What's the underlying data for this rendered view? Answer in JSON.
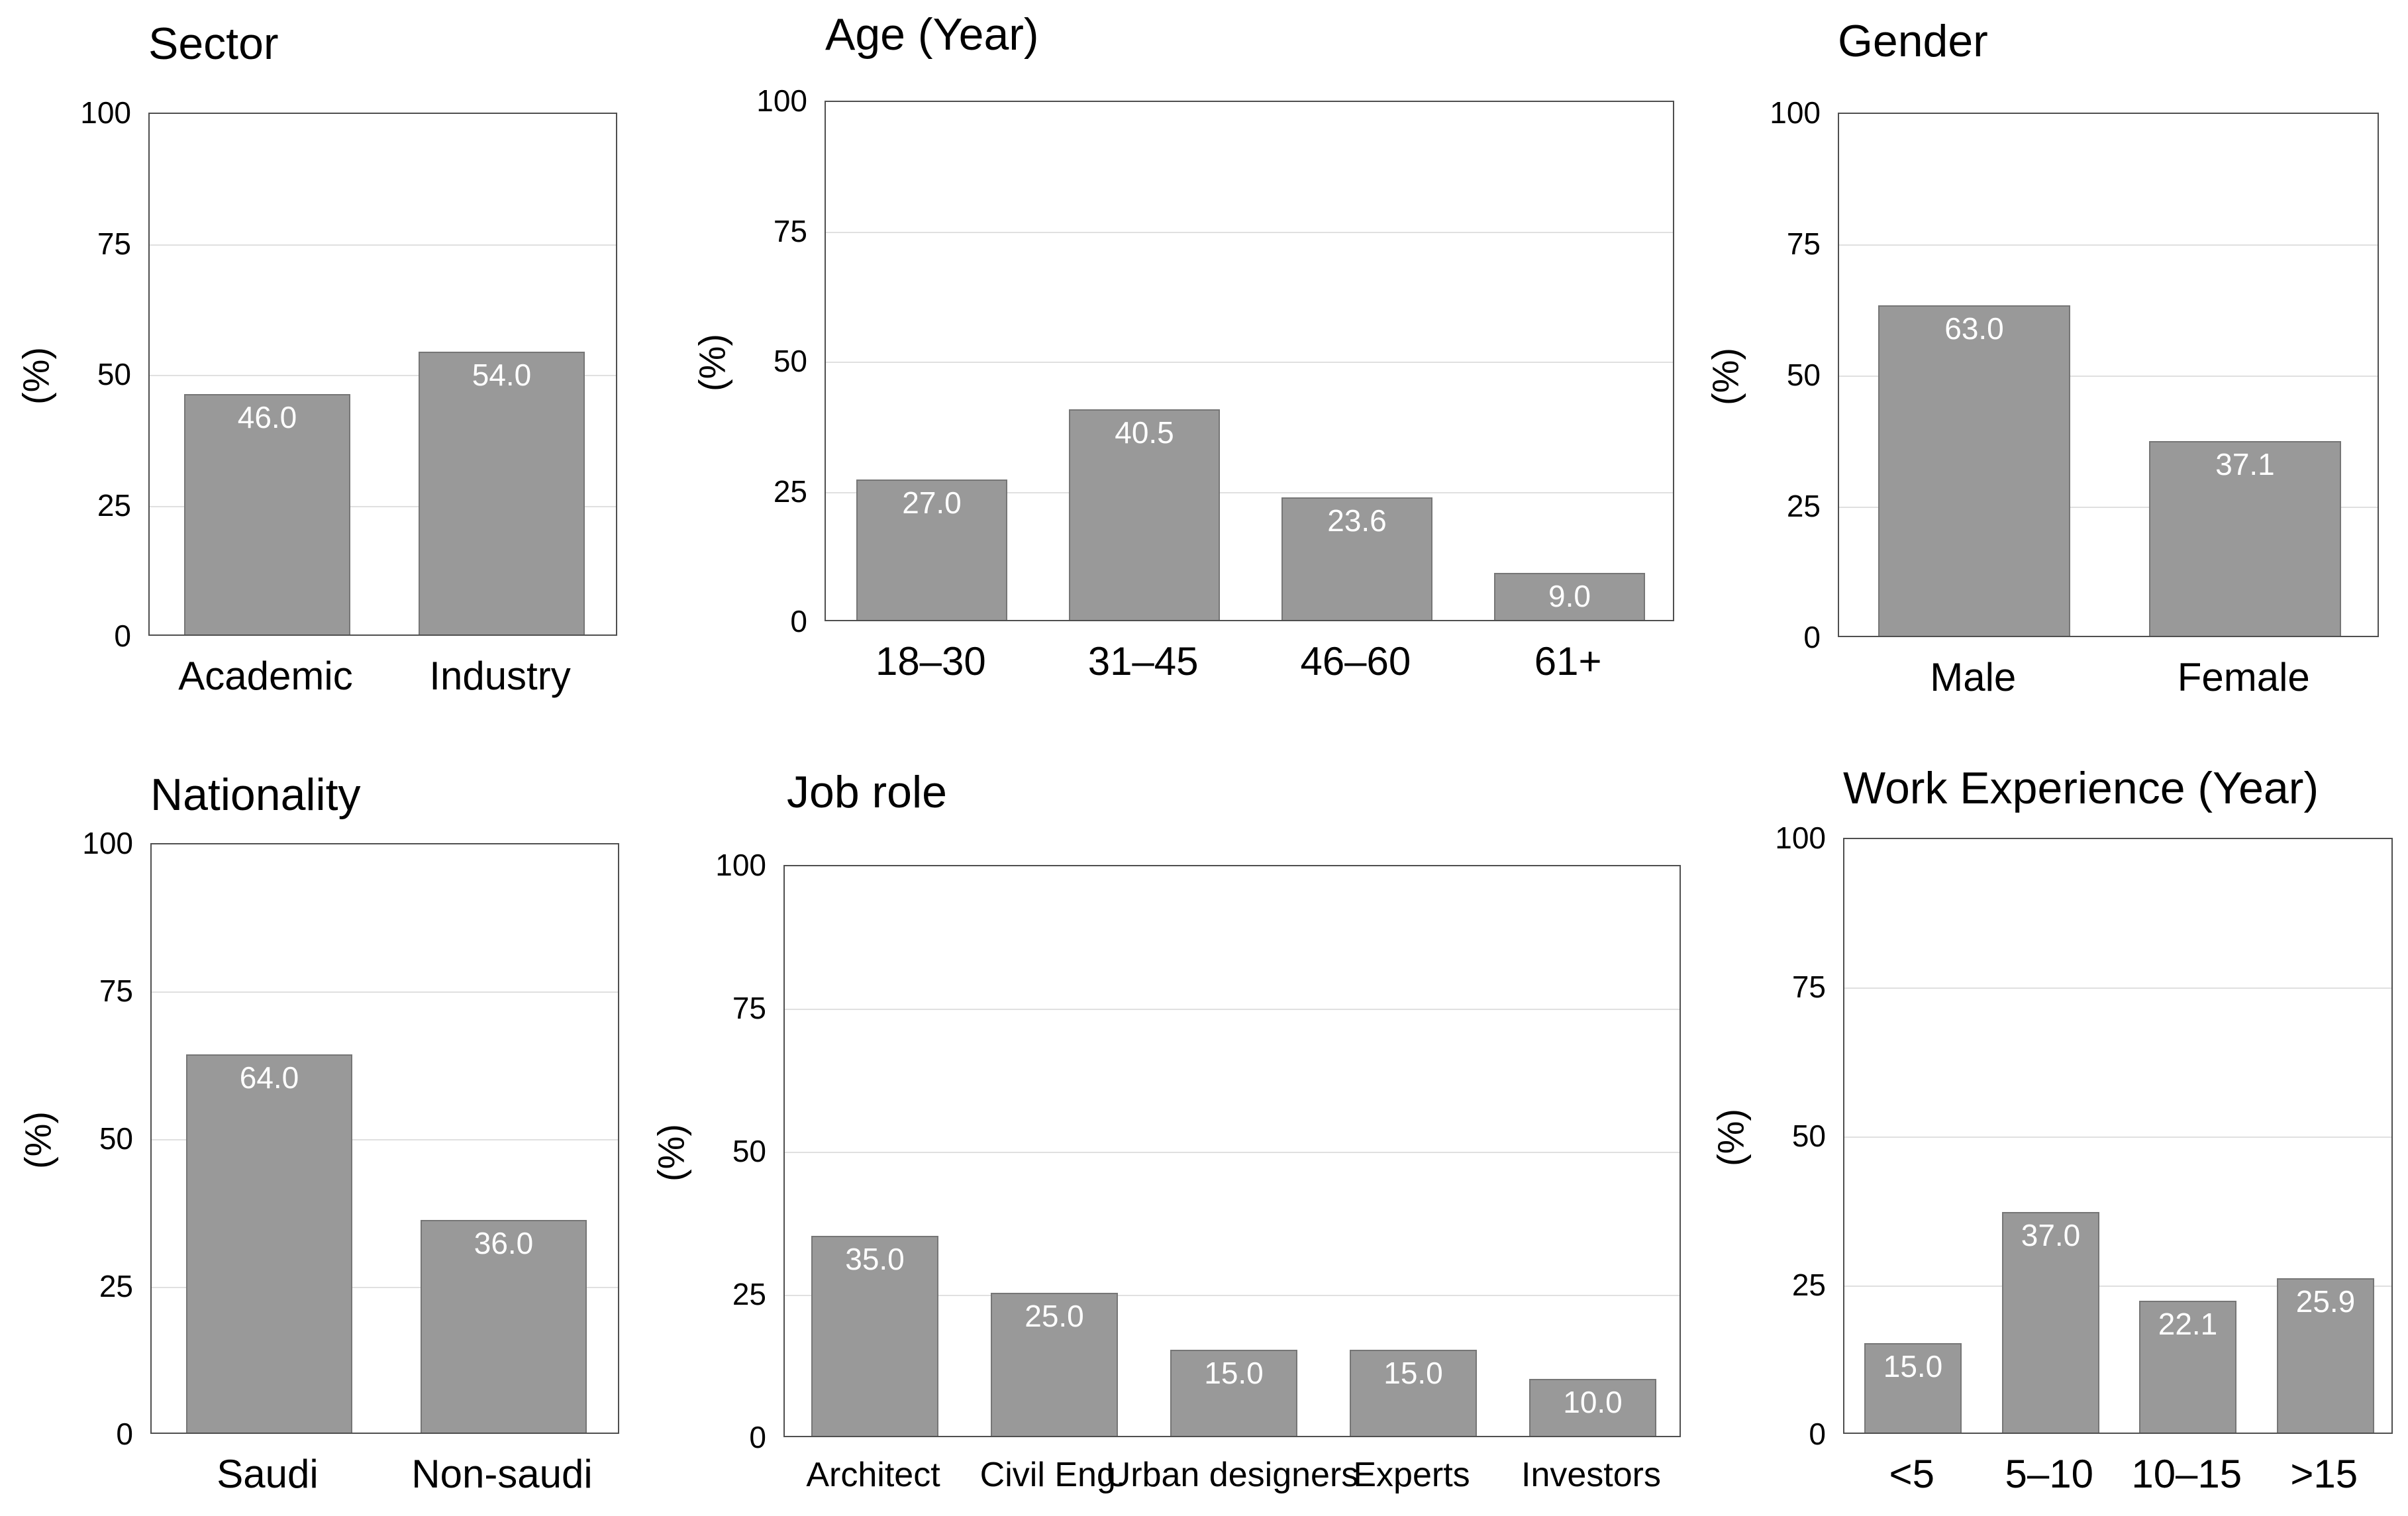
{
  "figure": {
    "background": "#ffffff",
    "bar_fill": "#999999",
    "bar_border": "#767676",
    "grid_color": "#e0e0e0",
    "axis_color": "#4f4f4f",
    "text_color": "#000000",
    "value_label_color": "#ffffff"
  },
  "chart_data": [
    {
      "type": "bar",
      "title": "Sector",
      "categories": [
        "Academic",
        "Industry"
      ],
      "values": [
        46.0,
        54.0
      ],
      "value_labels": [
        "46.0",
        "54.0"
      ],
      "xlabel": "",
      "ylabel": "(%)",
      "ylim": [
        0,
        100
      ],
      "yticks": [
        0,
        25,
        50,
        75,
        100
      ],
      "grid": true,
      "legend": "none"
    },
    {
      "type": "bar",
      "title": "Age (Year)",
      "categories": [
        "18–30",
        "31–45",
        "46–60",
        "61+"
      ],
      "values": [
        27.0,
        40.5,
        23.6,
        9.0
      ],
      "value_labels": [
        "27.0",
        "40.5",
        "23.6",
        "9.0"
      ],
      "xlabel": "",
      "ylabel": "(%)",
      "ylim": [
        0,
        100
      ],
      "yticks": [
        0,
        25,
        50,
        75,
        100
      ],
      "grid": true,
      "legend": "none"
    },
    {
      "type": "bar",
      "title": "Gender",
      "categories": [
        "Male",
        "Female"
      ],
      "values": [
        63.0,
        37.1
      ],
      "value_labels": [
        "63.0",
        "37.1"
      ],
      "xlabel": "",
      "ylabel": "(%)",
      "ylim": [
        0,
        100
      ],
      "yticks": [
        0,
        25,
        50,
        75,
        100
      ],
      "grid": true,
      "legend": "none"
    },
    {
      "type": "bar",
      "title": "Nationality",
      "categories": [
        "Saudi",
        "Non-saudi"
      ],
      "values": [
        64.0,
        36.0
      ],
      "value_labels": [
        "64.0",
        "36.0"
      ],
      "xlabel": "",
      "ylabel": "(%)",
      "ylim": [
        0,
        100
      ],
      "yticks": [
        0,
        25,
        50,
        75,
        100
      ],
      "grid": true,
      "legend": "none"
    },
    {
      "type": "bar",
      "title": "Job role",
      "categories": [
        "Architect",
        "Civil Eng.",
        "Urban designers",
        "Experts",
        "Investors"
      ],
      "values": [
        35.0,
        25.0,
        15.0,
        15.0,
        10.0
      ],
      "value_labels": [
        "35.0",
        "25.0",
        "15.0",
        "15.0",
        "10.0"
      ],
      "xlabel": "",
      "ylabel": "(%)",
      "ylim": [
        0,
        100
      ],
      "yticks": [
        0,
        25,
        50,
        75,
        100
      ],
      "grid": true,
      "legend": "none"
    },
    {
      "type": "bar",
      "title": "Work Experience (Year)",
      "categories": [
        "<5",
        "5–10",
        "10–15",
        ">15"
      ],
      "values": [
        15.0,
        37.0,
        22.1,
        25.9
      ],
      "value_labels": [
        "15.0",
        "37.0",
        "22.1",
        "25.9"
      ],
      "xlabel": "",
      "ylabel": "(%)",
      "ylim": [
        0,
        100
      ],
      "yticks": [
        0,
        25,
        50,
        75,
        100
      ],
      "grid": true,
      "legend": "none"
    }
  ]
}
